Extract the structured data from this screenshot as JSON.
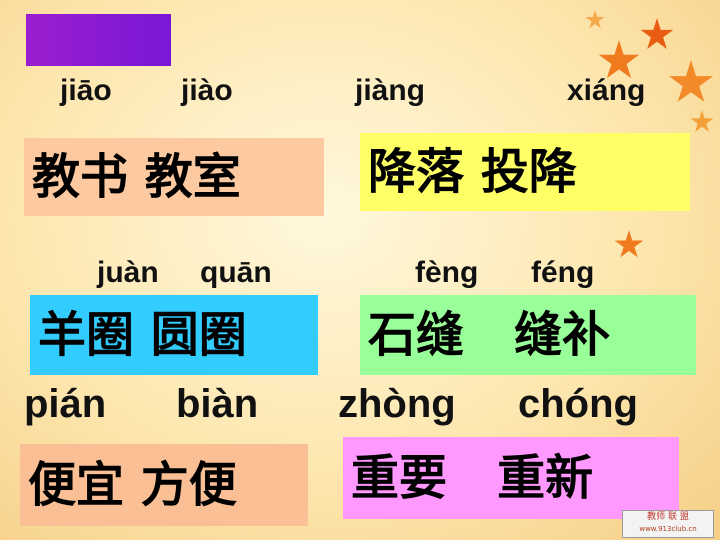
{
  "pinyin": {
    "jiao1": "jiāo",
    "jiao4": "jiào",
    "jiang": "jiàng",
    "xiang": "xiáng",
    "juan": "juàn",
    "quan": "quān",
    "feng4": "fèng",
    "feng2": "féng",
    "pian": "pián",
    "bian": "biàn",
    "zhong": "zhòng",
    "chong": "chóng"
  },
  "words": {
    "jiao": "教书 教室",
    "jiang": "降落 投降",
    "quan": "羊圈 圆圈",
    "feng": "石缝   缝补",
    "bian": "便宜 方便",
    "zhong": "重要   重新"
  },
  "colors": {
    "purple": "#8a1ad4",
    "salmon": "#fcc9a0",
    "yellow": "#ffff66",
    "cyan": "#33ccff",
    "green": "#99ff99",
    "pink": "#ff99ff",
    "light_salmon": "#fbbf95"
  },
  "decor": {
    "leaves": [
      "maple-leaf-icon"
    ],
    "watermark": [
      "教师 联 盟",
      "www.913club.cn"
    ]
  }
}
